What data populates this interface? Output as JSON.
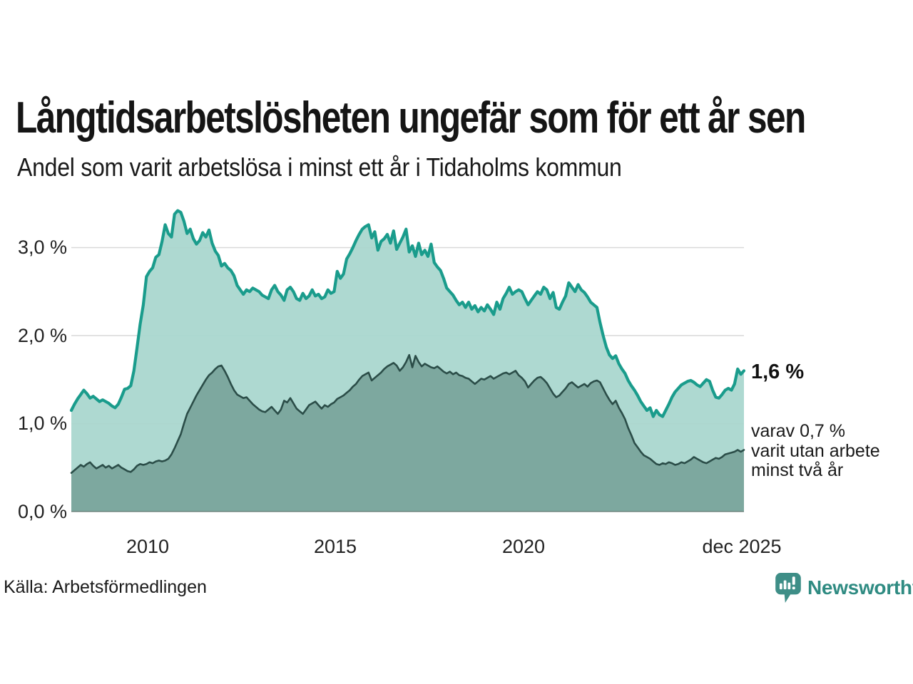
{
  "title": "Långtidsarbetslösheten ungefär som för ett år sen",
  "subtitle": "Andel som varit arbetslösa i minst ett år i Tidaholms kommun",
  "source": "Källa: Arbetsförmedlingen",
  "brand": {
    "name": "Newsworthy",
    "wordmark_color": "#2f8b82",
    "icon": "bar-chart-speech-bubble",
    "icon_color": "#3e8e87"
  },
  "annotation": {
    "latest_total": "1,6 %",
    "note_lines": [
      "varav 0,7 %",
      "varit utan arbete",
      "minst två år"
    ]
  },
  "colors": {
    "line_total": "#1a9c8c",
    "fill_total": "#a8d6ce",
    "line_two_year": "#2b4d48",
    "fill_two_year": "#7ba69d",
    "gridline": "#d9d9d9",
    "text": "#1a1a1a"
  },
  "chart_data": {
    "type": "area",
    "frequency": "monthly",
    "x_start": "2008-01",
    "x_end": "2025-12",
    "x_tick_labels": [
      "2010",
      "2015",
      "2020",
      "dec 2025"
    ],
    "x_tick_month_index": [
      24,
      84,
      144,
      215
    ],
    "y_tick_labels": [
      "3,0 %",
      "2,0 %",
      "1,0 %",
      "0,0 %"
    ],
    "y_gridline_values": [
      3,
      2,
      1,
      0
    ],
    "ylim": [
      0,
      3.45
    ],
    "grid": "horizontal",
    "unit": "percent",
    "series": [
      {
        "name": "Arbetslösa minst ett år",
        "latest_value": 1.6,
        "values": [
          1.15,
          1.22,
          1.28,
          1.33,
          1.38,
          1.34,
          1.29,
          1.31,
          1.28,
          1.25,
          1.27,
          1.25,
          1.23,
          1.2,
          1.18,
          1.22,
          1.3,
          1.39,
          1.4,
          1.43,
          1.6,
          1.86,
          2.13,
          2.35,
          2.67,
          2.73,
          2.77,
          2.89,
          2.92,
          3.07,
          3.26,
          3.16,
          3.12,
          3.38,
          3.42,
          3.4,
          3.3,
          3.16,
          3.21,
          3.1,
          3.04,
          3.08,
          3.17,
          3.12,
          3.2,
          3.05,
          2.96,
          2.91,
          2.79,
          2.82,
          2.77,
          2.74,
          2.68,
          2.57,
          2.52,
          2.47,
          2.52,
          2.5,
          2.54,
          2.52,
          2.5,
          2.46,
          2.44,
          2.42,
          2.52,
          2.57,
          2.5,
          2.46,
          2.4,
          2.52,
          2.55,
          2.5,
          2.42,
          2.4,
          2.48,
          2.42,
          2.45,
          2.52,
          2.45,
          2.47,
          2.42,
          2.44,
          2.52,
          2.48,
          2.5,
          2.73,
          2.65,
          2.7,
          2.87,
          2.93,
          3.0,
          3.08,
          3.15,
          3.21,
          3.24,
          3.26,
          3.11,
          3.18,
          2.97,
          3.07,
          3.1,
          3.15,
          3.05,
          3.19,
          2.98,
          3.05,
          3.12,
          3.21,
          2.95,
          3.02,
          2.9,
          3.05,
          2.92,
          2.97,
          2.9,
          3.04,
          2.83,
          2.78,
          2.74,
          2.65,
          2.54,
          2.5,
          2.46,
          2.4,
          2.35,
          2.38,
          2.32,
          2.38,
          2.3,
          2.34,
          2.27,
          2.32,
          2.28,
          2.35,
          2.3,
          2.24,
          2.38,
          2.3,
          2.42,
          2.48,
          2.55,
          2.47,
          2.5,
          2.52,
          2.5,
          2.42,
          2.35,
          2.4,
          2.45,
          2.5,
          2.47,
          2.55,
          2.52,
          2.42,
          2.49,
          2.32,
          2.3,
          2.38,
          2.45,
          2.6,
          2.55,
          2.5,
          2.58,
          2.52,
          2.49,
          2.44,
          2.38,
          2.35,
          2.32,
          2.15,
          2.0,
          1.87,
          1.78,
          1.74,
          1.77,
          1.68,
          1.62,
          1.57,
          1.49,
          1.43,
          1.38,
          1.32,
          1.25,
          1.2,
          1.15,
          1.18,
          1.08,
          1.15,
          1.1,
          1.08,
          1.15,
          1.22,
          1.3,
          1.36,
          1.4,
          1.44,
          1.46,
          1.48,
          1.49,
          1.47,
          1.44,
          1.42,
          1.46,
          1.5,
          1.48,
          1.38,
          1.3,
          1.29,
          1.33,
          1.38,
          1.4,
          1.38,
          1.45,
          1.62,
          1.56,
          1.6
        ]
      },
      {
        "name": "varav utan arbete minst två år",
        "latest_value": 0.7,
        "values": [
          0.44,
          0.47,
          0.5,
          0.53,
          0.51,
          0.54,
          0.56,
          0.52,
          0.49,
          0.51,
          0.53,
          0.5,
          0.52,
          0.49,
          0.51,
          0.53,
          0.5,
          0.48,
          0.46,
          0.45,
          0.48,
          0.52,
          0.54,
          0.53,
          0.54,
          0.56,
          0.55,
          0.57,
          0.58,
          0.57,
          0.58,
          0.6,
          0.65,
          0.72,
          0.8,
          0.88,
          1.0,
          1.11,
          1.18,
          1.25,
          1.32,
          1.38,
          1.44,
          1.5,
          1.55,
          1.58,
          1.62,
          1.65,
          1.66,
          1.6,
          1.53,
          1.45,
          1.38,
          1.33,
          1.31,
          1.29,
          1.3,
          1.26,
          1.22,
          1.19,
          1.16,
          1.14,
          1.13,
          1.16,
          1.19,
          1.15,
          1.11,
          1.16,
          1.26,
          1.24,
          1.29,
          1.23,
          1.17,
          1.14,
          1.11,
          1.16,
          1.21,
          1.23,
          1.25,
          1.21,
          1.17,
          1.21,
          1.19,
          1.22,
          1.24,
          1.28,
          1.3,
          1.32,
          1.35,
          1.38,
          1.42,
          1.45,
          1.5,
          1.54,
          1.56,
          1.58,
          1.49,
          1.52,
          1.55,
          1.58,
          1.62,
          1.65,
          1.67,
          1.69,
          1.66,
          1.6,
          1.64,
          1.7,
          1.78,
          1.64,
          1.77,
          1.7,
          1.65,
          1.68,
          1.66,
          1.64,
          1.63,
          1.65,
          1.62,
          1.59,
          1.57,
          1.59,
          1.56,
          1.58,
          1.55,
          1.54,
          1.52,
          1.51,
          1.48,
          1.45,
          1.48,
          1.51,
          1.5,
          1.52,
          1.54,
          1.51,
          1.53,
          1.55,
          1.57,
          1.58,
          1.56,
          1.58,
          1.6,
          1.55,
          1.52,
          1.48,
          1.41,
          1.45,
          1.49,
          1.52,
          1.53,
          1.5,
          1.46,
          1.4,
          1.34,
          1.3,
          1.32,
          1.36,
          1.4,
          1.45,
          1.47,
          1.44,
          1.41,
          1.43,
          1.45,
          1.42,
          1.46,
          1.48,
          1.49,
          1.47,
          1.4,
          1.33,
          1.27,
          1.22,
          1.26,
          1.18,
          1.12,
          1.05,
          0.95,
          0.87,
          0.78,
          0.73,
          0.68,
          0.64,
          0.62,
          0.6,
          0.57,
          0.54,
          0.53,
          0.55,
          0.54,
          0.56,
          0.55,
          0.53,
          0.54,
          0.56,
          0.55,
          0.57,
          0.59,
          0.62,
          0.6,
          0.58,
          0.56,
          0.55,
          0.57,
          0.59,
          0.61,
          0.6,
          0.62,
          0.65,
          0.66,
          0.67,
          0.68,
          0.7,
          0.68,
          0.7
        ]
      }
    ]
  }
}
